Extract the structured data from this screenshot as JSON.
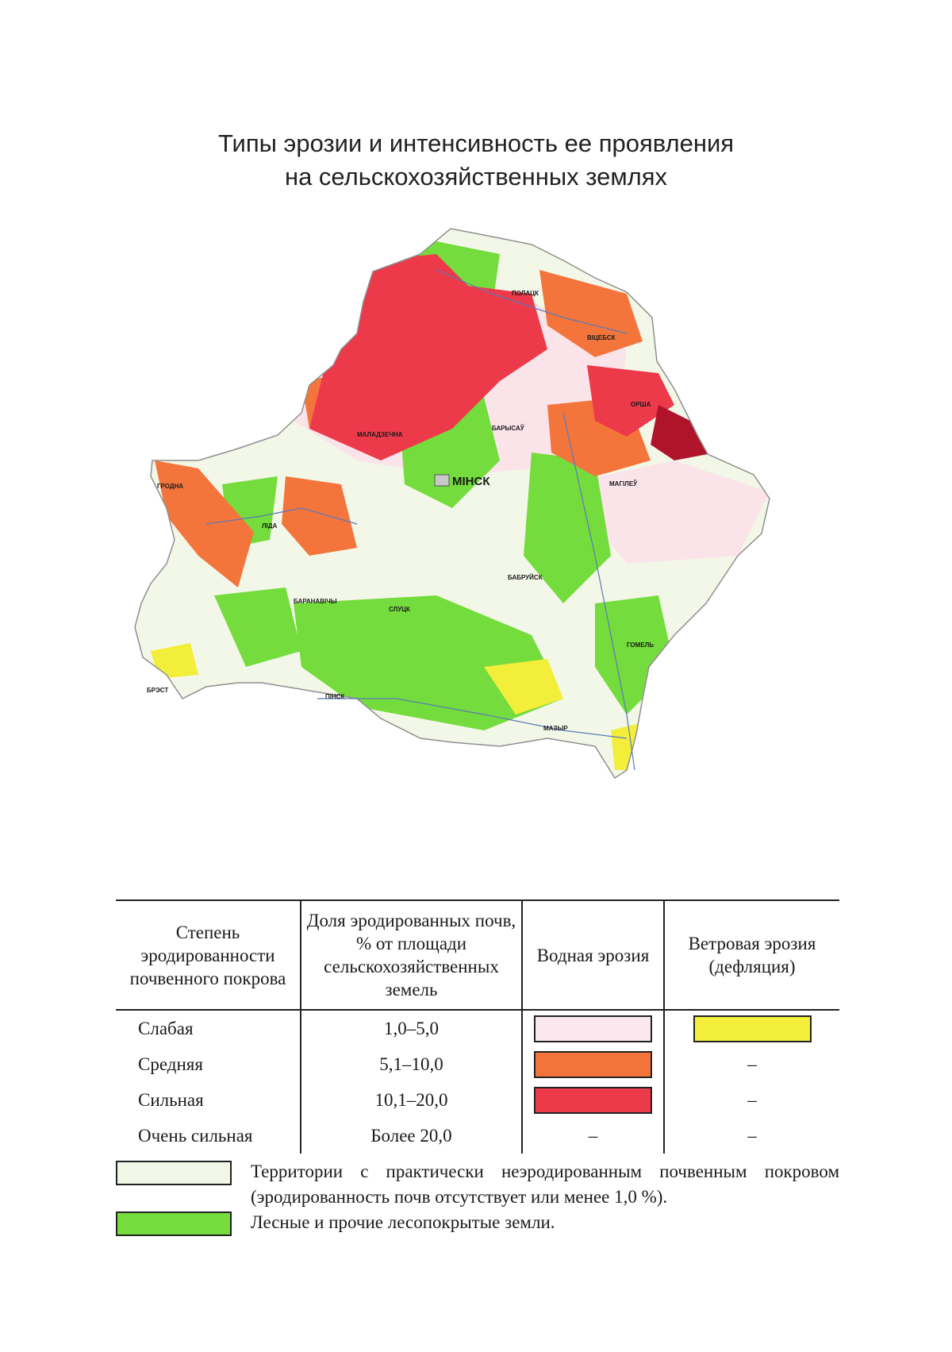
{
  "title": {
    "line1": "Типы эрозии и интенсивность ее проявления",
    "line2": "на сельскохозяйственных землях"
  },
  "map": {
    "colors": {
      "none": "#f3f7e8",
      "forest": "#74dc3c",
      "weak_water": "#fbe3ea",
      "medium_water": "#f4753c",
      "strong_water": "#ec3a4a",
      "very_strong_water": "#b0142a",
      "wind": "#f3ee3a"
    },
    "cities": {
      "minsk": "МІНСК",
      "grodna": "ГРОДНА",
      "brest": "БРЭСТ",
      "gomel": "ГОМЕЛЬ",
      "magilew": "МАГІЛЕЎ",
      "vitsebsk": "ВІЦЕБСК",
      "polatsk": "ПОЛАЦК",
      "barysau": "БАРЫСАЎ",
      "orsha": "ОРША",
      "lida": "ЛІДА",
      "pinsk": "ПІНСК",
      "mazyr": "МАЗЫР",
      "babruisk": "БАБРУЙСК",
      "baranavichy": "БАРАНАВІЧЫ",
      "slutsk": "СЛУЦК",
      "maladzechna": "МАЛАДЗЕЧНА"
    }
  },
  "legend": {
    "headers": [
      "Степень эродированности почвенного покрова",
      "Доля эродированных почв, % от площади сельскохозяйственных земель",
      "Водная эрозия",
      "Ветровая эрозия (дефляция)"
    ],
    "rows": [
      {
        "degree": "Слабая",
        "share": "1,0–5,0",
        "water_color": "#fbe8ee",
        "wind_color": "#f3ee3a"
      },
      {
        "degree": "Средняя",
        "share": "5,1–10,0",
        "water_color": "#f4753c",
        "wind": "–"
      },
      {
        "degree": "Сильная",
        "share": "10,1–20,0",
        "water_color": "#ec3a4a",
        "wind": "–"
      },
      {
        "degree": "Очень сильная",
        "share": "Более 20,0",
        "water": "–",
        "wind": "–"
      }
    ]
  },
  "notes": [
    {
      "color": "#f1f7e6",
      "text": "Территории с практически неэродированным почвенным покровом (эродированность почв отсутствует или менее 1,0 %)."
    },
    {
      "color": "#74dc3c",
      "text": "Лесные и прочие лесопокрытые земли."
    }
  ]
}
